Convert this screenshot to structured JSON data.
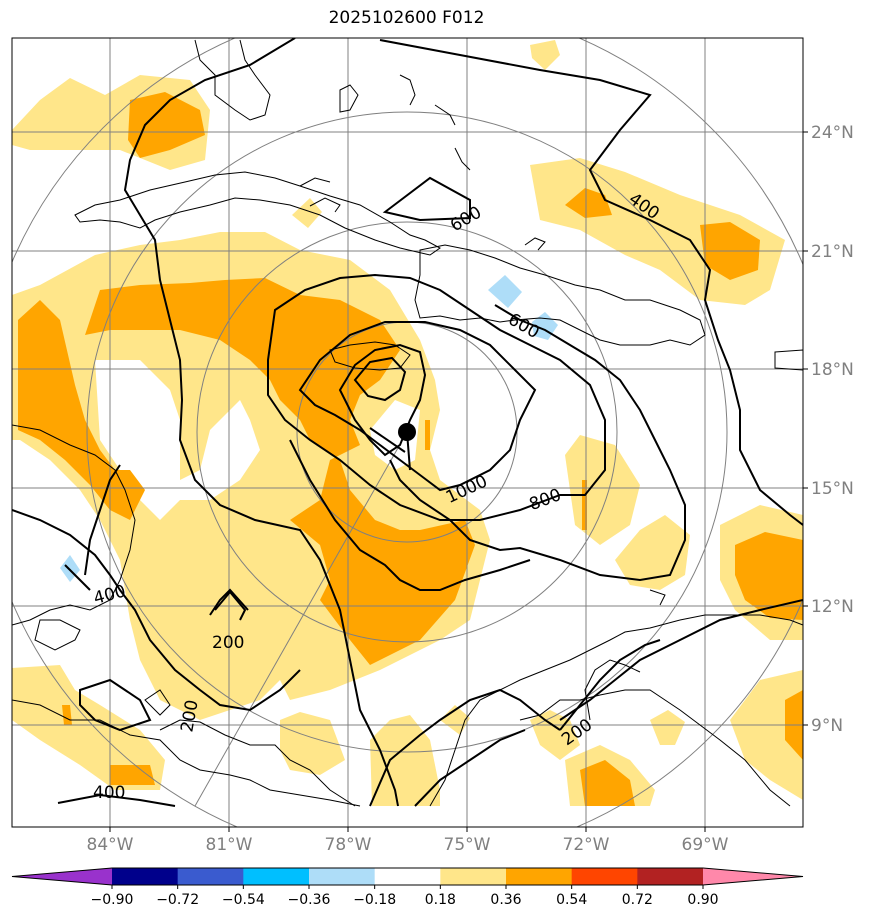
{
  "title": "2025102600 F012",
  "map": {
    "lon_ticks": [
      "84°W",
      "81°W",
      "78°W",
      "75°W",
      "72°W",
      "69°W"
    ],
    "lat_ticks": [
      "24°N",
      "21°N",
      "18°N",
      "15°N",
      "12°N",
      "9°N"
    ],
    "center_marker": "storm-center"
  },
  "contour_labels": [
    "600",
    "400",
    "600",
    "1000",
    "800",
    "400",
    "200",
    "200",
    "400",
    "200"
  ],
  "colorbar": {
    "tick_labels": [
      "−0.90",
      "−0.72",
      "−0.54",
      "−0.36",
      "−0.18",
      "0.18",
      "0.36",
      "0.54",
      "0.72",
      "0.90"
    ],
    "colors": [
      "#9932cc",
      "#00008b",
      "#3a5bcf",
      "#00bfff",
      "#aeddf8",
      "#ffffff",
      "#ffe68a",
      "#ffa500",
      "#ff4500",
      "#b22222",
      "#ff88aa"
    ]
  },
  "colors": {
    "shade_light": "#ffe68a",
    "shade_mid": "#ffa500",
    "shade_neg": "#aeddf8",
    "grid": "#808080"
  }
}
